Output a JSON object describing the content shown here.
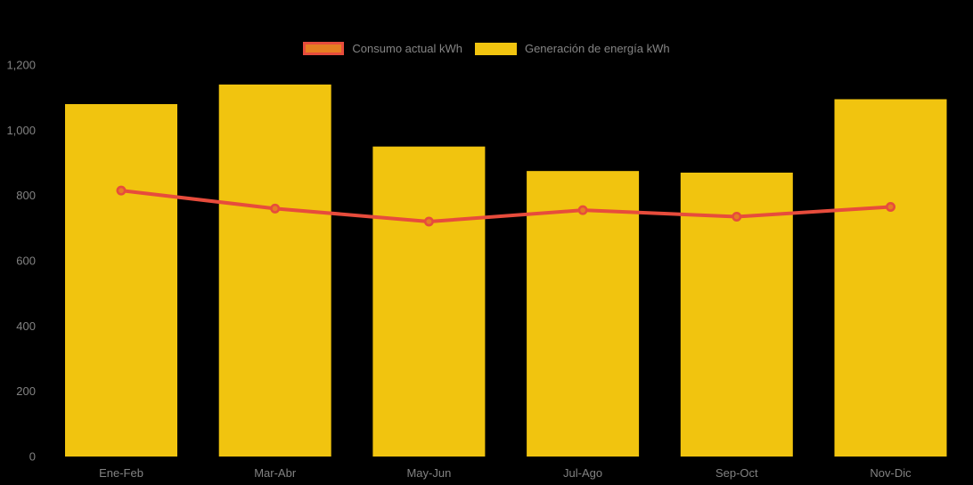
{
  "legend": {
    "items": [
      {
        "label": "Consumo actual kWh",
        "series": "line"
      },
      {
        "label": "Generación de energía kWh",
        "series": "bar"
      }
    ]
  },
  "colors": {
    "background": "#000000",
    "bar_fill": "#F1C40F",
    "line_stroke": "#E74C3C",
    "marker_fill": "#E67E22",
    "marker_stroke": "#E74C3C",
    "axis_text": "#828282",
    "legend_text": "#848484"
  },
  "chart_data": {
    "type": "bar",
    "subtype": "bar-with-line-overlay",
    "title": "",
    "xlabel": "",
    "ylabel": "",
    "categories": [
      "Ene-Feb",
      "Mar-Abr",
      "May-Jun",
      "Jul-Ago",
      "Sep-Oct",
      "Nov-Dic"
    ],
    "series": [
      {
        "name": "Generación de energía kWh",
        "type": "bar",
        "color": "#F1C40F",
        "values": [
          1080,
          1140,
          950,
          875,
          870,
          1095
        ]
      },
      {
        "name": "Consumo actual kWh",
        "type": "line",
        "color": "#E74C3C",
        "marker_color": "#E67E22",
        "values": [
          815,
          760,
          720,
          755,
          735,
          765
        ]
      }
    ],
    "ylim": [
      0,
      1200
    ],
    "yticks": [
      0,
      200,
      400,
      600,
      800,
      1000,
      1200
    ],
    "ytick_labels": [
      "0",
      "200",
      "400",
      "600",
      "800",
      "1,000",
      "1,200"
    ],
    "grid": false,
    "legend_position": "top-center"
  }
}
